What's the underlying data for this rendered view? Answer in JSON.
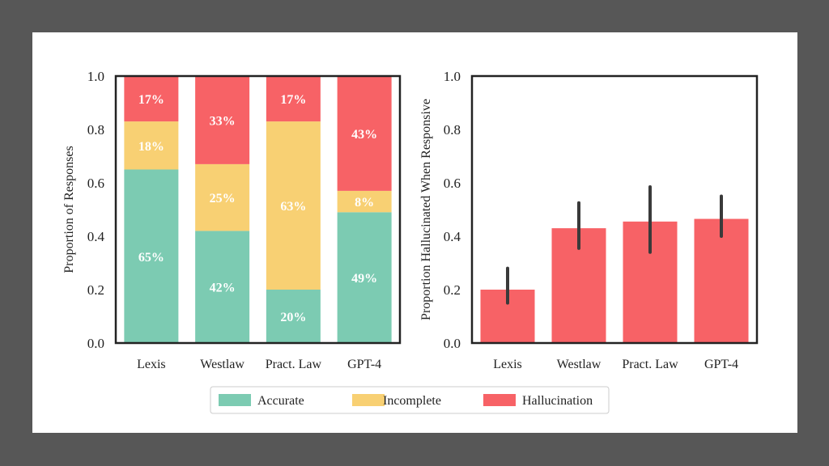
{
  "chart_data": [
    {
      "type": "bar",
      "stacked": true,
      "categories": [
        "Lexis",
        "Westlaw",
        "Pract. Law",
        "GPT-4"
      ],
      "ylabel": "Proportion of Responses",
      "ylim": [
        0,
        1
      ],
      "yticks": [
        "0.0",
        "0.2",
        "0.4",
        "0.6",
        "0.8",
        "1.0"
      ],
      "series": [
        {
          "name": "Accurate",
          "color": "#7ccbb2",
          "values": [
            0.65,
            0.42,
            0.2,
            0.49
          ],
          "labels": [
            "65%",
            "42%",
            "20%",
            "49%"
          ]
        },
        {
          "name": "Incomplete",
          "color": "#f8d073",
          "values": [
            0.18,
            0.25,
            0.63,
            0.08
          ],
          "labels": [
            "18%",
            "25%",
            "63%",
            "8%"
          ]
        },
        {
          "name": "Hallucination",
          "color": "#f76266",
          "values": [
            0.17,
            0.33,
            0.17,
            0.43
          ],
          "labels": [
            "17%",
            "33%",
            "17%",
            "43%"
          ]
        }
      ]
    },
    {
      "type": "bar",
      "categories": [
        "Lexis",
        "Westlaw",
        "Pract. Law",
        "GPT-4"
      ],
      "ylabel": "Proportion Hallucinated When Responsive",
      "ylim": [
        0,
        1
      ],
      "yticks": [
        "0.0",
        "0.2",
        "0.4",
        "0.6",
        "0.8",
        "1.0"
      ],
      "color": "#f76266",
      "values": [
        0.2,
        0.43,
        0.455,
        0.465
      ],
      "error_low": [
        0.15,
        0.355,
        0.34,
        0.4
      ],
      "error_high": [
        0.28,
        0.525,
        0.585,
        0.55
      ]
    }
  ],
  "legend": {
    "placement": "bottom-center",
    "items": [
      {
        "label": "Accurate",
        "color": "#7ccbb2"
      },
      {
        "label": "Incomplete",
        "color": "#f8d073"
      },
      {
        "label": "Hallucination",
        "color": "#f76266"
      }
    ]
  }
}
